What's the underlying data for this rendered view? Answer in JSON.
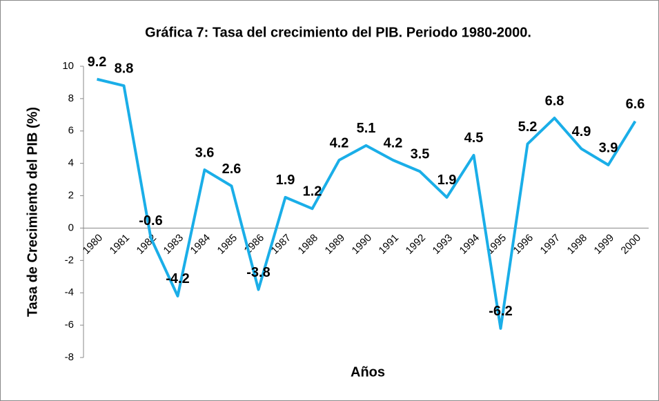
{
  "chart_data": {
    "type": "line",
    "title": "Gráfica 7: Tasa del crecimiento del PIB. Periodo 1980-2000.",
    "x_label": "Años",
    "y_label": "Tasa de Crecimiento del PIB (%)",
    "categories": [
      "1980",
      "1981",
      "1982",
      "1983",
      "1984",
      "1985",
      "1986",
      "1987",
      "1988",
      "1989",
      "1990",
      "1991",
      "1992",
      "1993",
      "1994",
      "1995",
      "1996",
      "1997",
      "1998",
      "1999",
      "2000"
    ],
    "values": [
      9.2,
      8.8,
      -0.6,
      -4.2,
      3.6,
      2.6,
      -3.8,
      1.9,
      1.2,
      4.2,
      5.1,
      4.2,
      3.5,
      1.9,
      4.5,
      -6.2,
      5.2,
      6.8,
      4.9,
      3.9,
      6.6
    ],
    "color": "#1aaee8",
    "ylim": [
      -8,
      10
    ],
    "yticks": [
      -8,
      -6,
      -4,
      -2,
      0,
      2,
      4,
      6,
      8,
      10
    ],
    "grid": false
  }
}
